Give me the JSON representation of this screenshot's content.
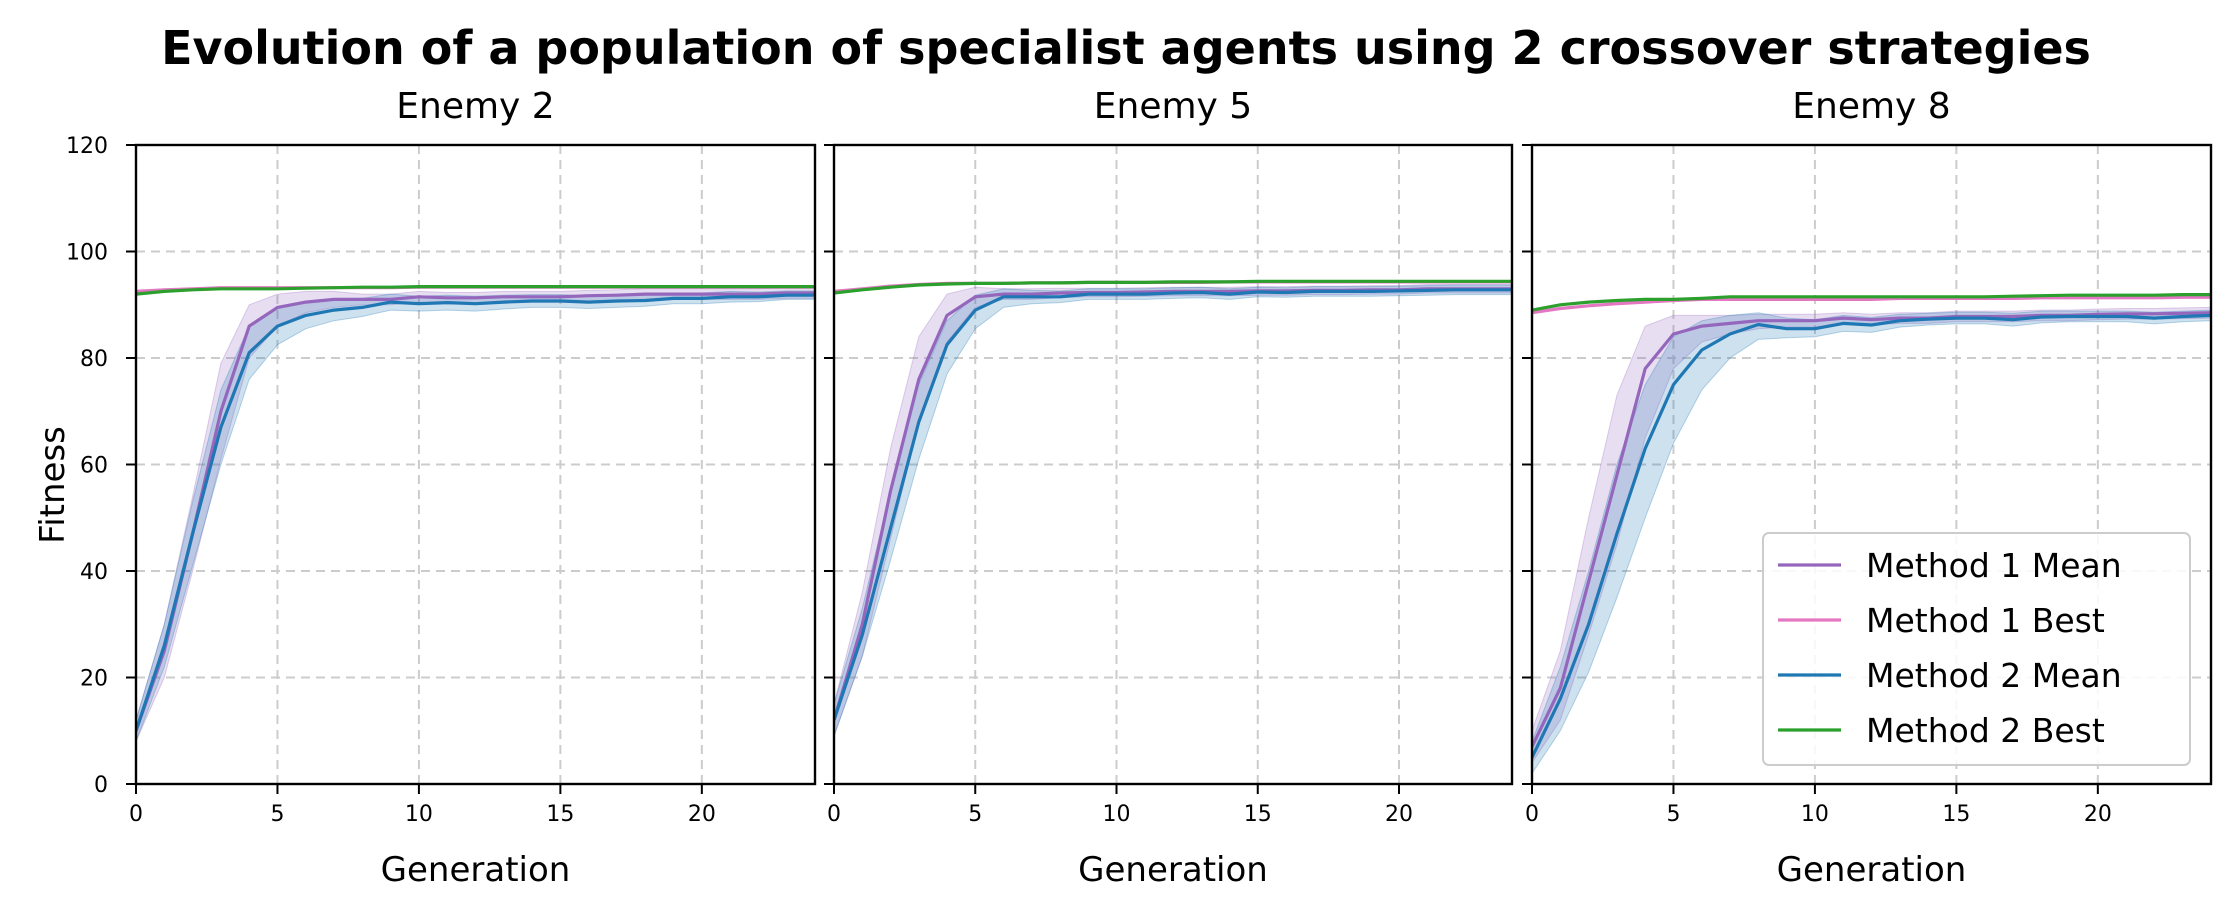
{
  "title": "Evolution of a population of specialist agents using 2 crossover strategies",
  "y_axis_label": "Fitness",
  "colors": {
    "method1_mean": "#9467bd",
    "method1_best": "#e377c2",
    "method2_mean": "#1f77b4",
    "method2_best": "#2ca02c",
    "grid": "#cccccc"
  },
  "legend": {
    "placement": "lower-right of third panel",
    "entries": [
      "Method 1 Mean",
      "Method 1 Best",
      "Method 2 Mean",
      "Method 2 Best"
    ]
  },
  "chart_data": [
    {
      "type": "line",
      "title": "Enemy 2",
      "xlabel": "Generation",
      "ylabel": "Fitness",
      "xlim": [
        0,
        24
      ],
      "ylim": [
        0,
        120
      ],
      "xticks": [
        0,
        5,
        10,
        15,
        20
      ],
      "yticks": [
        0,
        20,
        40,
        60,
        80,
        100,
        120
      ],
      "grid": true,
      "x": [
        0,
        1,
        2,
        3,
        4,
        5,
        6,
        7,
        8,
        9,
        10,
        11,
        12,
        13,
        14,
        15,
        16,
        17,
        18,
        19,
        20,
        21,
        22,
        23,
        24
      ],
      "series": [
        {
          "name": "Method 1 Mean",
          "values": [
            10,
            25,
            47,
            70,
            86,
            89.5,
            90.5,
            91,
            91,
            91,
            91.5,
            91.3,
            91.3,
            91.5,
            91.5,
            91.5,
            91.7,
            91.8,
            92,
            92,
            92,
            92,
            92,
            92.2,
            92.2
          ],
          "band": [
            [
              8,
              20,
              40,
              61,
              80,
              86,
              88.5,
              89.5,
              90,
              90,
              90.5,
              90.2,
              90.2,
              90.5,
              90.5,
              90.5,
              90.7,
              90.8,
              91,
              91,
              91,
              91,
              91,
              91.2,
              91.2
            ],
            [
              12,
              30,
              54,
              79,
              90,
              92,
              92.5,
              92.5,
              92,
              92,
              92.5,
              92.3,
              92.3,
              92.5,
              92.5,
              92.5,
              92.7,
              92.8,
              93,
              93,
              93,
              93,
              93,
              93.2,
              93.2
            ]
          ]
        },
        {
          "name": "Method 1 Best",
          "values": [
            92.5,
            92.8,
            93,
            93.2,
            93.2,
            93.2,
            93.2,
            93.2,
            93.2,
            93.2,
            93.3,
            93.3,
            93.3,
            93.3,
            93.3,
            93.3,
            93.3,
            93.3,
            93.3,
            93.3,
            93.3,
            93.3,
            93.3,
            93.3,
            93.3
          ]
        },
        {
          "name": "Method 2 Mean",
          "values": [
            10,
            26,
            47,
            67,
            81,
            86,
            88,
            89,
            89.5,
            90.5,
            90.2,
            90.4,
            90.2,
            90.5,
            90.7,
            90.7,
            90.5,
            90.7,
            90.8,
            91.2,
            91.2,
            91.5,
            91.5,
            91.8,
            91.8
          ],
          "band": [
            [
              8,
              22,
              41,
              60,
              76,
              82.5,
              85.5,
              87,
              87.8,
              89,
              88.8,
              89,
              88.8,
              89.2,
              89.5,
              89.5,
              89.3,
              89.5,
              89.7,
              90.2,
              90.2,
              90.5,
              90.6,
              91,
              91
            ],
            [
              12,
              30,
              53,
              74,
              86,
              89.5,
              90.5,
              91,
              91.2,
              92,
              91.6,
              91.8,
              91.6,
              91.8,
              91.9,
              91.9,
              91.7,
              91.9,
              91.9,
              92.2,
              92.2,
              92.5,
              92.4,
              92.6,
              92.6
            ]
          ]
        },
        {
          "name": "Method 2 Best",
          "values": [
            92,
            92.5,
            92.8,
            93,
            93,
            93,
            93.1,
            93.2,
            93.3,
            93.3,
            93.4,
            93.4,
            93.4,
            93.4,
            93.4,
            93.4,
            93.4,
            93.4,
            93.4,
            93.4,
            93.4,
            93.4,
            93.4,
            93.4,
            93.4
          ]
        }
      ]
    },
    {
      "type": "line",
      "title": "Enemy 5",
      "xlabel": "Generation",
      "ylabel": "",
      "xlim": [
        0,
        24
      ],
      "ylim": [
        0,
        120
      ],
      "xticks": [
        0,
        5,
        10,
        15,
        20
      ],
      "yticks": [
        0,
        20,
        40,
        60,
        80,
        100,
        120
      ],
      "grid": true,
      "x": [
        0,
        1,
        2,
        3,
        4,
        5,
        6,
        7,
        8,
        9,
        10,
        11,
        12,
        13,
        14,
        15,
        16,
        17,
        18,
        19,
        20,
        21,
        22,
        23,
        24
      ],
      "series": [
        {
          "name": "Method 1 Mean",
          "values": [
            12,
            30,
            55,
            76,
            88,
            91.5,
            92,
            92,
            92.2,
            92.3,
            92.3,
            92.4,
            92.5,
            92.5,
            92.5,
            92.6,
            92.6,
            92.7,
            92.7,
            92.8,
            92.8,
            93,
            93,
            93,
            93
          ],
          "band": [
            [
              9,
              24,
              46,
              68,
              83,
              89.5,
              91,
              91,
              91.3,
              91.5,
              91.5,
              91.6,
              91.7,
              91.7,
              91.7,
              91.8,
              91.8,
              91.9,
              91.9,
              92,
              92,
              92.2,
              92.2,
              92.2,
              92.2
            ],
            [
              15,
              36,
              63,
              84,
              92,
              93.3,
              93,
              93,
              93.1,
              93.1,
              93.1,
              93.2,
              93.3,
              93.3,
              93.3,
              93.4,
              93.4,
              93.5,
              93.5,
              93.6,
              93.6,
              93.8,
              93.8,
              93.8,
              93.8
            ]
          ]
        },
        {
          "name": "Method 1 Best",
          "values": [
            92.5,
            93,
            93.5,
            93.8,
            94,
            94,
            94,
            94.1,
            94.1,
            94.2,
            94.2,
            94.2,
            94.2,
            94.2,
            94.3,
            94.3,
            94.3,
            94.3,
            94.3,
            94.3,
            94.3,
            94.3,
            94.3,
            94.3,
            94.3
          ]
        },
        {
          "name": "Method 2 Mean",
          "values": [
            12,
            28,
            48,
            68,
            82.5,
            89,
            91.5,
            91.5,
            91.5,
            92,
            92,
            92,
            92.2,
            92.3,
            92,
            92.4,
            92.3,
            92.5,
            92.5,
            92.5,
            92.6,
            92.7,
            92.8,
            92.8,
            92.8
          ],
          "band": [
            [
              9,
              24,
              42,
              61,
              77,
              85.5,
              89.5,
              90.2,
              90.4,
              91,
              91,
              91,
              91.2,
              91.3,
              91,
              91.5,
              91.4,
              91.6,
              91.6,
              91.6,
              91.7,
              91.8,
              91.9,
              91.9,
              91.9
            ],
            [
              15,
              33,
              55,
              75,
              87,
              91.8,
              93,
              92.7,
              92.6,
              93,
              93,
              93,
              93.2,
              93.3,
              93,
              93.3,
              93.2,
              93.4,
              93.4,
              93.4,
              93.5,
              93.6,
              93.7,
              93.7,
              93.7
            ]
          ]
        },
        {
          "name": "Method 2 Best",
          "values": [
            92.2,
            92.8,
            93.3,
            93.7,
            93.9,
            94,
            94,
            94.1,
            94.1,
            94.2,
            94.2,
            94.2,
            94.3,
            94.3,
            94.3,
            94.4,
            94.4,
            94.4,
            94.4,
            94.4,
            94.4,
            94.4,
            94.4,
            94.4,
            94.4
          ]
        }
      ]
    },
    {
      "type": "line",
      "title": "Enemy 8",
      "xlabel": "Generation",
      "ylabel": "",
      "xlim": [
        0,
        24
      ],
      "ylim": [
        0,
        120
      ],
      "xticks": [
        0,
        5,
        10,
        15,
        20
      ],
      "yticks": [
        0,
        20,
        40,
        60,
        80,
        100,
        120
      ],
      "grid": true,
      "x": [
        0,
        1,
        2,
        3,
        4,
        5,
        6,
        7,
        8,
        9,
        10,
        11,
        12,
        13,
        14,
        15,
        16,
        17,
        18,
        19,
        20,
        21,
        22,
        23,
        24
      ],
      "series": [
        {
          "name": "Method 1 Mean",
          "values": [
            7,
            18,
            38,
            58,
            78,
            84.5,
            86,
            86.5,
            87,
            87,
            87,
            87.5,
            87.2,
            87.5,
            87.5,
            87.8,
            87.8,
            87.8,
            88,
            88,
            88.2,
            88.3,
            88.3,
            88.4,
            88.5
          ],
          "band": [
            [
              4,
              12,
              28,
              45,
              65,
              78,
              83,
              84.5,
              85.5,
              85.8,
              85.8,
              86.5,
              86.2,
              86.5,
              86.5,
              86.8,
              86.8,
              86.8,
              87,
              87,
              87.2,
              87.3,
              87.3,
              87.4,
              87.5
            ],
            [
              10,
              25,
              50,
              73,
              86,
              88,
              88,
              88,
              88.2,
              88.2,
              88.2,
              88.5,
              88.2,
              88.5,
              88.5,
              88.8,
              88.8,
              88.8,
              89,
              89,
              89.2,
              89.3,
              89.3,
              89.4,
              89.5
            ]
          ]
        },
        {
          "name": "Method 1 Best",
          "values": [
            88.5,
            89.3,
            89.8,
            90.2,
            90.5,
            90.8,
            91,
            91,
            91,
            91,
            91,
            91,
            91,
            91.2,
            91.2,
            91.2,
            91.2,
            91.2,
            91.3,
            91.3,
            91.3,
            91.3,
            91.3,
            91.4,
            91.4
          ]
        },
        {
          "name": "Method 2 Mean",
          "values": [
            5,
            16,
            30,
            47,
            63,
            75,
            81.5,
            84.5,
            86.3,
            85.5,
            85.5,
            86.5,
            86.2,
            87,
            87.3,
            87.5,
            87.5,
            87.2,
            87.7,
            87.8,
            87.8,
            87.8,
            87.5,
            87.8,
            88
          ],
          "band": [
            [
              2,
              10,
              21,
              35,
              50,
              64,
              74,
              80,
              83.5,
              83.8,
              84,
              85,
              84.8,
              85.8,
              86.2,
              86.4,
              86.4,
              86,
              86.6,
              86.8,
              86.8,
              86.8,
              86.4,
              86.8,
              87
            ],
            [
              8,
              22,
              40,
              60,
              75,
              84,
              87,
              88,
              88.5,
              87.5,
              87.2,
              88,
              87.6,
              88.2,
              88.4,
              88.6,
              88.6,
              88.4,
              88.8,
              88.8,
              88.8,
              88.8,
              88.6,
              88.8,
              89
            ]
          ]
        },
        {
          "name": "Method 2 Best",
          "values": [
            89,
            90,
            90.5,
            90.8,
            91,
            91,
            91.2,
            91.5,
            91.5,
            91.5,
            91.5,
            91.5,
            91.5,
            91.5,
            91.5,
            91.5,
            91.5,
            91.6,
            91.7,
            91.8,
            91.8,
            91.8,
            91.8,
            91.9,
            91.9
          ]
        }
      ]
    }
  ]
}
